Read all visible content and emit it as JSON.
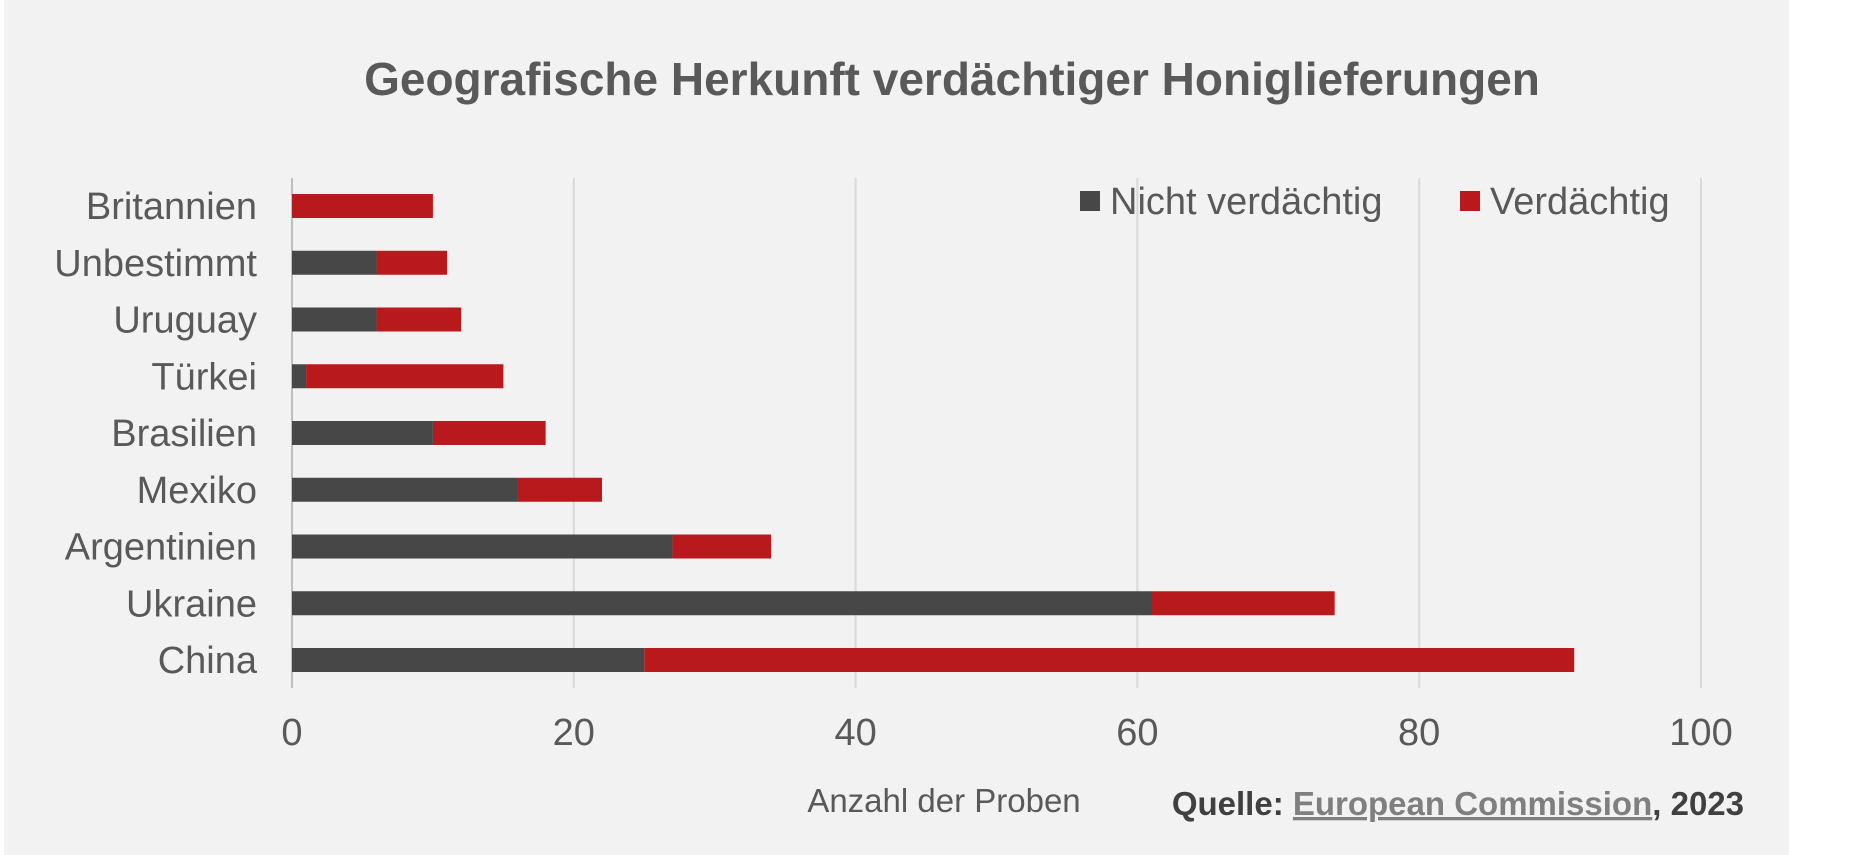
{
  "chart_data": {
    "type": "bar",
    "orientation": "horizontal",
    "stacked": true,
    "title": "Geografische Herkunft verdächtiger Honiglieferungen",
    "xlabel": "Anzahl der Proben",
    "ylabel": "",
    "xlim": [
      0,
      100
    ],
    "xticks": [
      0,
      20,
      40,
      60,
      80,
      100
    ],
    "grid": "vertical",
    "legend": "top-right",
    "categories": [
      "Britannien",
      "Unbestimmt",
      "Uruguay",
      "Türkei",
      "Brasilien",
      "Mexiko",
      "Argentinien",
      "Ukraine",
      "China"
    ],
    "series": [
      {
        "name": "Nicht verdächtig",
        "color": "#474747",
        "values": [
          0,
          6,
          6,
          1,
          10,
          16,
          27,
          61,
          25
        ]
      },
      {
        "name": "Verdächtig",
        "color": "#b7191c",
        "values": [
          10,
          5,
          6,
          14,
          8,
          6,
          7,
          13,
          66
        ]
      }
    ]
  },
  "source": {
    "prefix": "Quelle: ",
    "link_text": "European Commission",
    "suffix": ", 2023"
  },
  "colors": {
    "background": "#f2f2f2",
    "gridline": "#d9d9d9",
    "text": "#595959"
  }
}
